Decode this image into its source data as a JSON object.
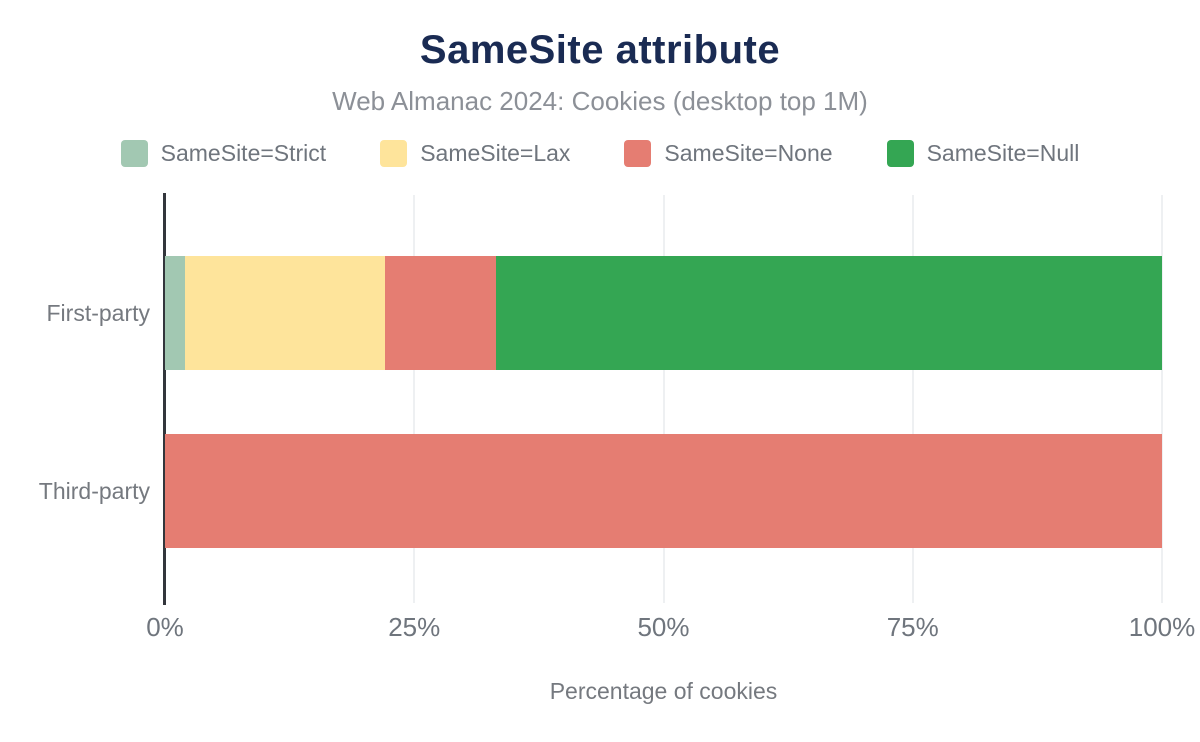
{
  "header": {
    "title": "SameSite attribute",
    "subtitle": "Web Almanac 2024: Cookies (desktop top 1M)"
  },
  "chart_data": {
    "type": "bar",
    "orientation": "horizontal",
    "stacked": true,
    "title": "SameSite attribute",
    "subtitle": "Web Almanac 2024: Cookies (desktop top 1M)",
    "categories": [
      "First-party",
      "Third-party"
    ],
    "series": [
      {
        "name": "SameSite=Strict",
        "color": "#a2c8b2",
        "values": [
          2.0,
          0
        ]
      },
      {
        "name": "SameSite=Lax",
        "color": "#fee49b",
        "values": [
          20.1,
          0
        ]
      },
      {
        "name": "SameSite=None",
        "color": "#e57d72",
        "values": [
          11.1,
          100
        ]
      },
      {
        "name": "SameSite=Null",
        "color": "#34a653",
        "values": [
          66.8,
          0
        ]
      }
    ],
    "xlabel": "Percentage of cookies",
    "ylabel": "",
    "xlim": [
      0,
      100
    ],
    "x_ticks": [
      "0%",
      "25%",
      "50%",
      "75%",
      "100%"
    ],
    "x_tick_values": [
      0,
      25,
      50,
      75,
      100
    ],
    "grid": "vertical",
    "legend_position": "top"
  },
  "colors": {
    "background": "#ffffff",
    "title_text": "#1a2b53",
    "subtitle_text": "#8c9097",
    "axis_text": "#6f757d",
    "axis_line": "#33363c",
    "gridline": "#eef0f2"
  }
}
